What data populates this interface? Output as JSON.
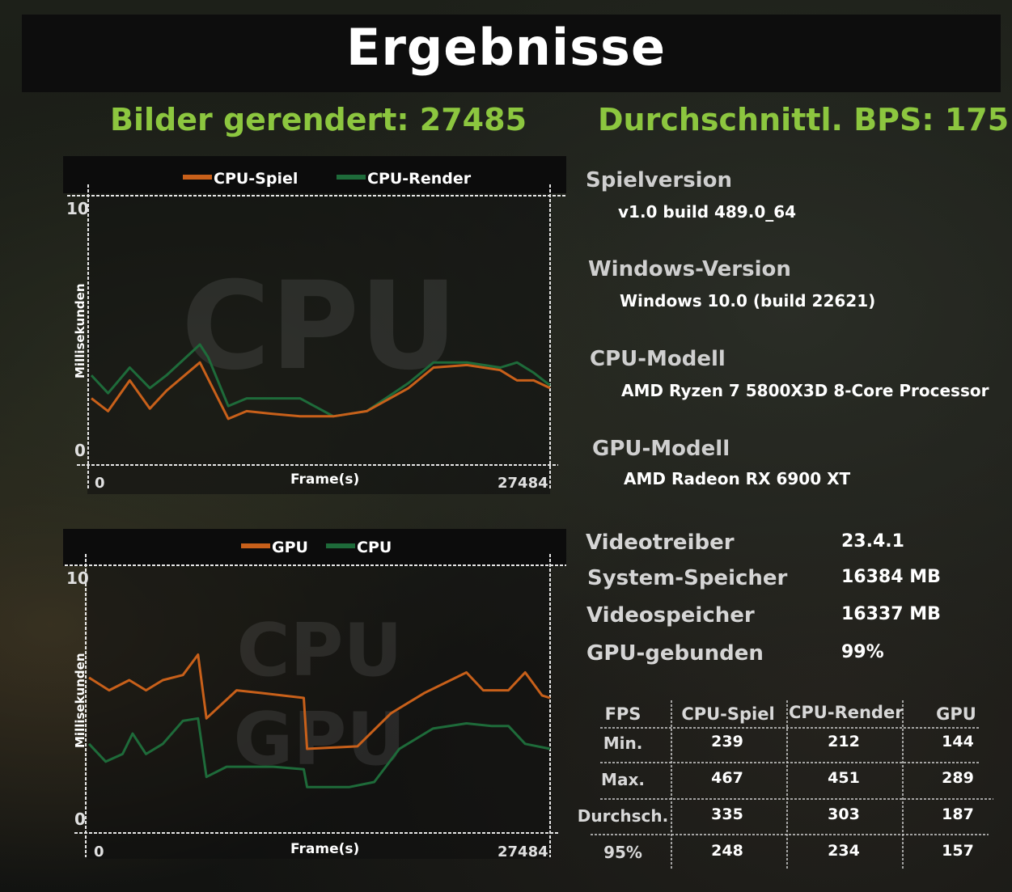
{
  "title": "Ergebnisse",
  "header": {
    "frames_rendered": "Bilder gerendert: 27485",
    "avg_fps": "Durchschnittl. BPS: 175"
  },
  "charts": [
    {
      "legend": [
        {
          "name": "CPU-Spiel",
          "color": "#c8601a"
        },
        {
          "name": "CPU-Render",
          "color": "#1e6b3a"
        }
      ],
      "watermark": "CPU",
      "y_top": "10",
      "y_bottom": "0",
      "x_left": "0",
      "x_right": "27484",
      "xlabel": "Frame(s)",
      "ylabel": "Millisekunden"
    },
    {
      "legend": [
        {
          "name": "GPU",
          "color": "#c8601a"
        },
        {
          "name": "CPU",
          "color": "#1e6b3a"
        }
      ],
      "watermark_top": "CPU",
      "watermark_bottom": "GPU",
      "y_top": "10",
      "y_bottom": "0",
      "x_left": "0",
      "x_right": "27484",
      "xlabel": "Frame(s)",
      "ylabel": "Millisekunden"
    }
  ],
  "chart_data": [
    {
      "type": "line",
      "xlim": [
        0,
        27484
      ],
      "ylim": [
        0,
        10
      ],
      "xlabel": "Frame(s)",
      "ylabel": "Millisekunden",
      "series": [
        {
          "name": "CPU-Spiel",
          "color": "#c8601a",
          "x": [
            0,
            1000,
            2300,
            3500,
            4500,
            6500,
            8200,
            9300,
            10800,
            12500,
            14500,
            16500,
            19000,
            20500,
            22500,
            24500,
            25500,
            26500,
            27484
          ],
          "y": [
            2.6,
            2.1,
            3.3,
            2.2,
            2.9,
            4.0,
            1.8,
            2.1,
            2.0,
            1.9,
            1.9,
            2.1,
            3.0,
            3.8,
            3.9,
            3.7,
            3.3,
            3.3,
            3.0
          ]
        },
        {
          "name": "CPU-Render",
          "color": "#1e6b3a",
          "x": [
            0,
            1000,
            2300,
            3500,
            4500,
            6500,
            7000,
            8200,
            9300,
            11000,
            12500,
            14500,
            16500,
            19000,
            20500,
            22500,
            24500,
            25500,
            26500,
            27484
          ],
          "y": [
            3.5,
            2.8,
            3.8,
            3.0,
            3.5,
            4.7,
            4.2,
            2.3,
            2.6,
            2.6,
            2.6,
            1.9,
            2.1,
            3.2,
            4.0,
            4.0,
            3.8,
            4.0,
            3.6,
            3.1
          ]
        }
      ]
    },
    {
      "type": "line",
      "xlim": [
        0,
        27484
      ],
      "ylim": [
        0,
        10
      ],
      "xlabel": "Frame(s)",
      "ylabel": "Millisekunden",
      "series": [
        {
          "name": "GPU",
          "color": "#c8601a",
          "x": [
            0,
            1200,
            2400,
            3400,
            4400,
            5600,
            6500,
            7000,
            8800,
            10200,
            12800,
            13000,
            16000,
            18000,
            20000,
            22500,
            23500,
            25000,
            26000,
            27000,
            27484
          ],
          "y": [
            6.1,
            5.6,
            6.0,
            5.6,
            6.0,
            6.2,
            7.0,
            4.5,
            5.6,
            5.5,
            5.3,
            3.3,
            3.4,
            4.7,
            5.5,
            6.3,
            5.6,
            5.6,
            6.3,
            5.4,
            5.3
          ]
        },
        {
          "name": "CPU",
          "color": "#1e6b3a",
          "x": [
            0,
            1000,
            2000,
            2600,
            3400,
            4400,
            5600,
            6500,
            7000,
            8200,
            9300,
            11000,
            12800,
            13000,
            15500,
            17000,
            18500,
            20500,
            22500,
            24000,
            25000,
            26000,
            27484
          ],
          "y": [
            3.5,
            2.8,
            3.1,
            3.9,
            3.1,
            3.5,
            4.4,
            4.5,
            2.2,
            2.6,
            2.6,
            2.6,
            2.5,
            1.8,
            1.8,
            2.0,
            3.3,
            4.1,
            4.3,
            4.2,
            4.2,
            3.5,
            3.3
          ]
        }
      ]
    }
  ],
  "info": [
    {
      "label": "Spielversion",
      "value": "v1.0 build 489.0_64"
    },
    {
      "label": "Windows-Version",
      "value": "Windows 10.0 (build 22621)"
    },
    {
      "label": "CPU-Modell",
      "value": "AMD Ryzen 7 5800X3D 8-Core Processor"
    },
    {
      "label": "GPU-Modell",
      "value": "AMD Radeon RX 6900 XT"
    }
  ],
  "system": [
    {
      "label": "Videotreiber",
      "value": "23.4.1"
    },
    {
      "label": "System-Speicher",
      "value": "16384 MB"
    },
    {
      "label": "Videospeicher",
      "value": "16337 MB"
    },
    {
      "label": "GPU-gebunden",
      "value": "99%"
    }
  ],
  "table": {
    "headers": [
      "FPS",
      "CPU-Spiel",
      "CPU-Render",
      "GPU"
    ],
    "rows": [
      {
        "label": "Min.",
        "values": [
          "239",
          "212",
          "144"
        ]
      },
      {
        "label": "Max.",
        "values": [
          "467",
          "451",
          "289"
        ]
      },
      {
        "label": "Durchsch.",
        "values": [
          "335",
          "303",
          "187"
        ]
      },
      {
        "label": "95%",
        "values": [
          "248",
          "234",
          "157"
        ]
      }
    ]
  }
}
